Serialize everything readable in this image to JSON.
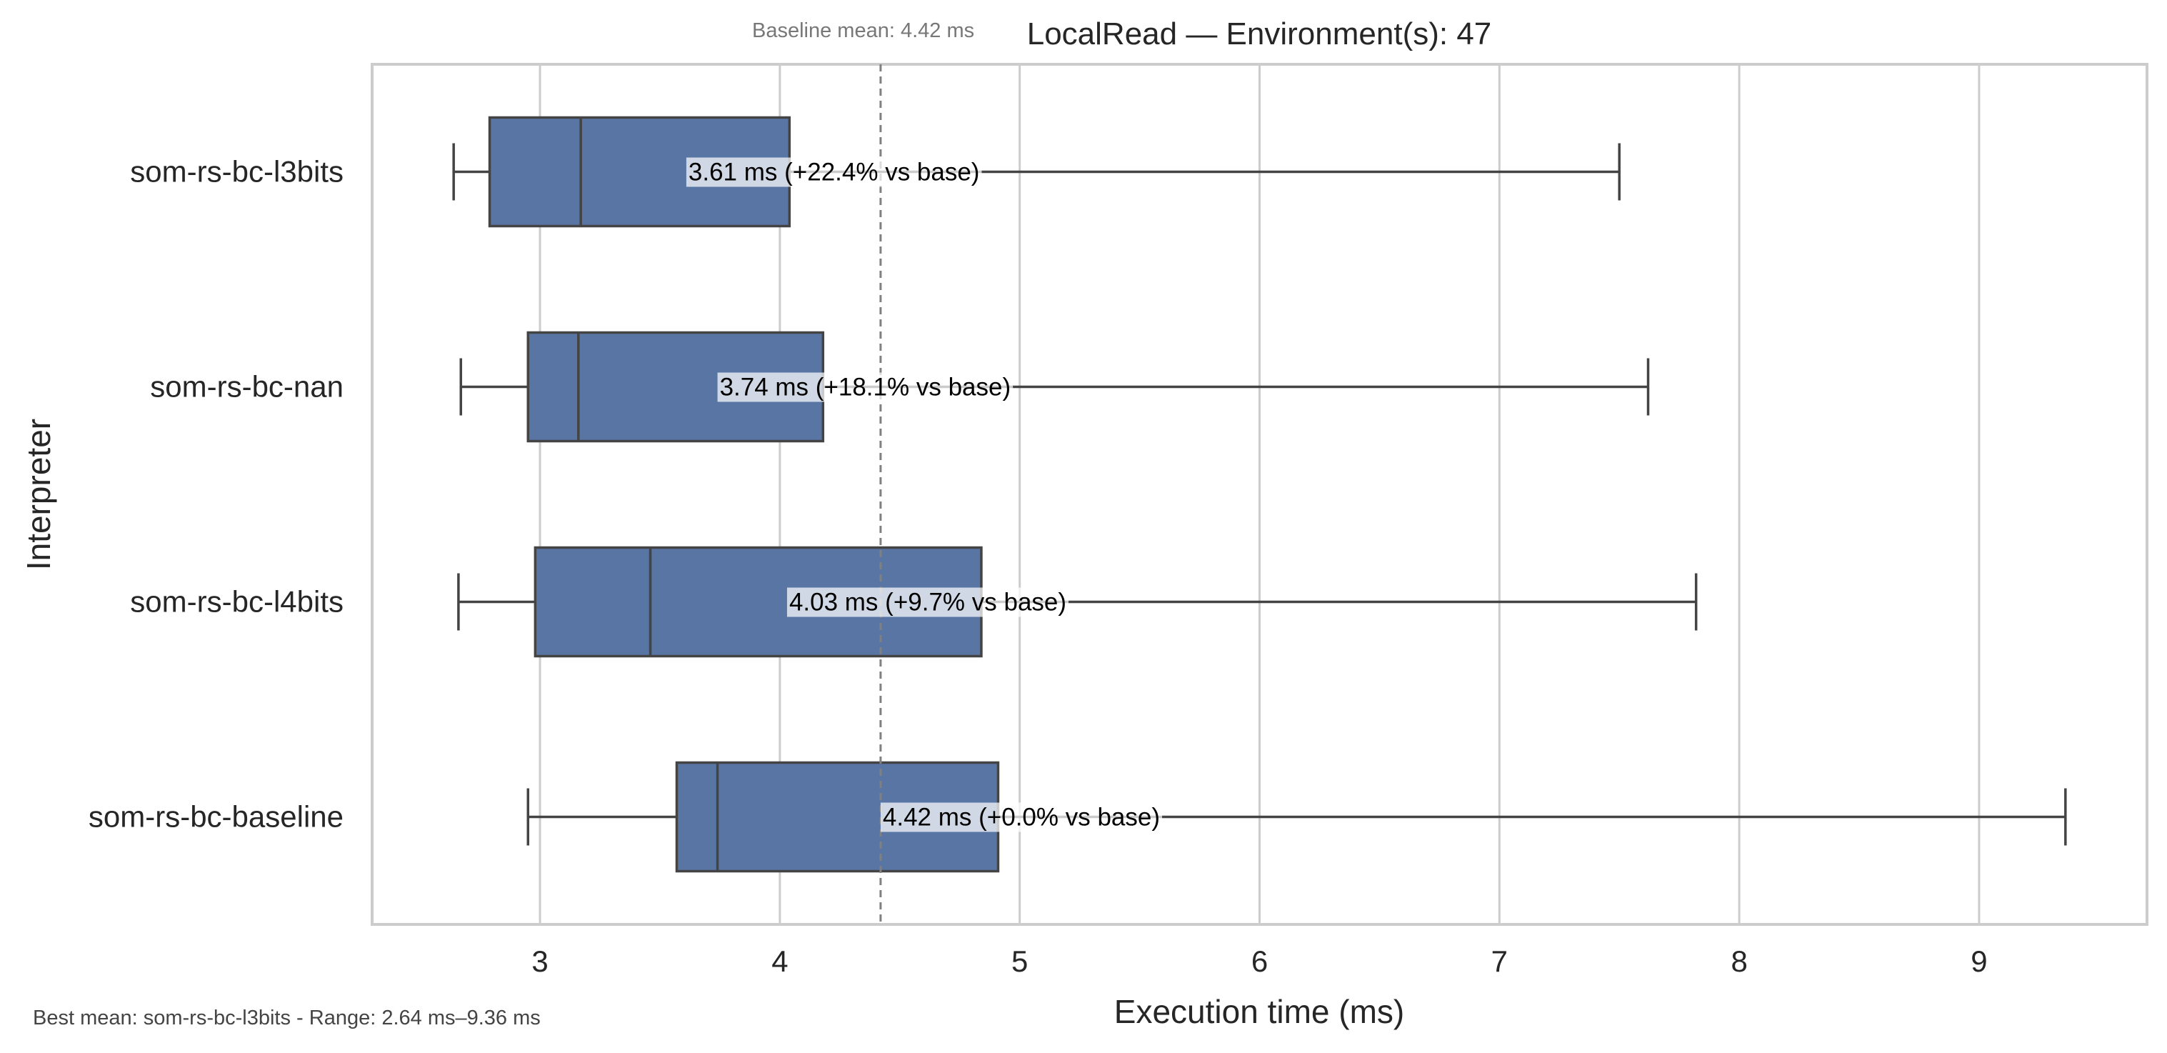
{
  "chart_data": {
    "type": "boxplot",
    "orientation": "horizontal",
    "title": "LocalRead — Environment(s): 47",
    "baseline_note": "Baseline mean: 4.42 ms",
    "footer_note": "Best mean: som-rs-bc-l3bits - Range: 2.64 ms–9.36 ms",
    "xlabel": "Execution time (ms)",
    "ylabel": "Interpreter",
    "xlim": [
      2.3,
      9.7
    ],
    "xticks": [
      3,
      4,
      5,
      6,
      7,
      8,
      9
    ],
    "grid": "vertical",
    "baseline_value": 4.42,
    "box_color": "#5875a4",
    "series": [
      {
        "name": "som-rs-bc-l3bits",
        "whisker_low": 2.64,
        "q1": 2.79,
        "median": 3.17,
        "q3": 4.04,
        "whisker_high": 7.5,
        "label": "3.61 ms  (+22.4% vs base)",
        "label_at": 3.61
      },
      {
        "name": "som-rs-bc-nan",
        "whisker_low": 2.67,
        "q1": 2.95,
        "median": 3.16,
        "q3": 4.18,
        "whisker_high": 7.62,
        "label": "3.74 ms  (+18.1% vs base)",
        "label_at": 3.74
      },
      {
        "name": "som-rs-bc-l4bits",
        "whisker_low": 2.66,
        "q1": 2.98,
        "median": 3.46,
        "q3": 4.84,
        "whisker_high": 7.82,
        "label": "4.03 ms  (+9.7% vs base)",
        "label_at": 4.03
      },
      {
        "name": "som-rs-bc-baseline",
        "whisker_low": 2.95,
        "q1": 3.57,
        "median": 3.74,
        "q3": 4.91,
        "whisker_high": 9.36,
        "label": "4.42 ms  (+0.0% vs base)",
        "label_at": 4.42
      }
    ]
  }
}
